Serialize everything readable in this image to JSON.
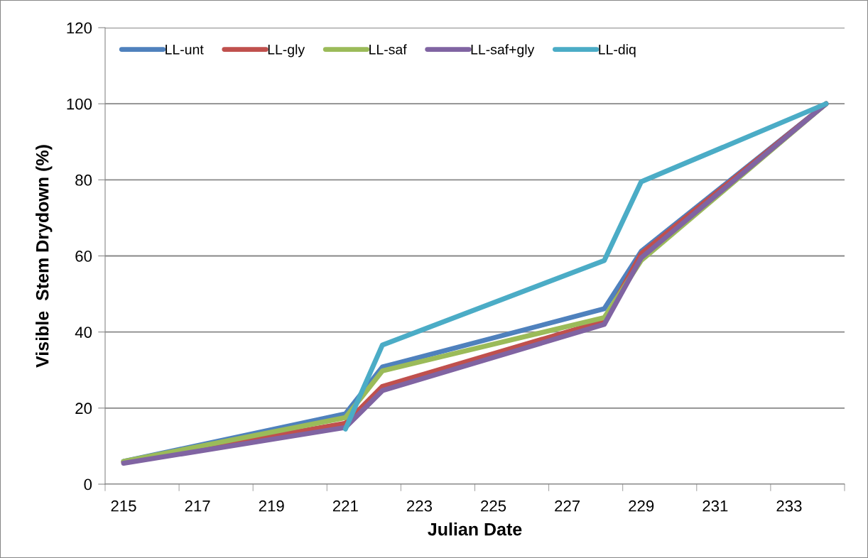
{
  "chart_data": {
    "type": "line",
    "xlabel": "Julian Date",
    "ylabel": "Visible  Stem Drydown (%)",
    "x": [
      215,
      221,
      222,
      228,
      229,
      234
    ],
    "series": [
      {
        "name": "LL-unt",
        "color": "#4f81bd",
        "values": [
          6,
          18.5,
          30.8,
          46.1,
          61.2,
          100
        ]
      },
      {
        "name": "LL-gly",
        "color": "#c0504d",
        "values": [
          5.8,
          16,
          25.7,
          42.9,
          60.6,
          100
        ]
      },
      {
        "name": "LL-saf",
        "color": "#9bbb59",
        "values": [
          6,
          17.5,
          29.8,
          43.8,
          58.8,
          100
        ]
      },
      {
        "name": "LL-saf+gly",
        "color": "#8064a2",
        "values": [
          5.5,
          14.9,
          24.6,
          42,
          59.5,
          100
        ]
      },
      {
        "name": "LL-diq",
        "color": "#4bacc6",
        "values": [
          null,
          14.5,
          36.6,
          58.8,
          79.5,
          100
        ]
      }
    ],
    "xlim": [
      214.5,
      234.5
    ],
    "xticks": [
      {
        "value": 214.5,
        "label": null
      },
      215,
      {
        "value": 216.5,
        "label": null
      },
      217,
      {
        "value": 218.5,
        "label": null
      },
      219,
      {
        "value": 220.5,
        "label": null
      },
      221,
      {
        "value": 222.5,
        "label": null
      },
      223,
      {
        "value": 224.5,
        "label": null
      },
      225,
      {
        "value": 226.5,
        "label": null
      },
      227,
      {
        "value": 228.5,
        "label": null
      },
      229,
      {
        "value": 230.5,
        "label": null
      },
      231,
      {
        "value": 232.5,
        "label": null
      },
      233,
      {
        "value": 234.5,
        "label": null
      }
    ],
    "ylim": [
      0,
      120
    ],
    "yticks": [
      0,
      20,
      40,
      60,
      80,
      100,
      120
    ],
    "grid": "y",
    "legend": "top left",
    "marker": "none",
    "line_style": "solid"
  }
}
